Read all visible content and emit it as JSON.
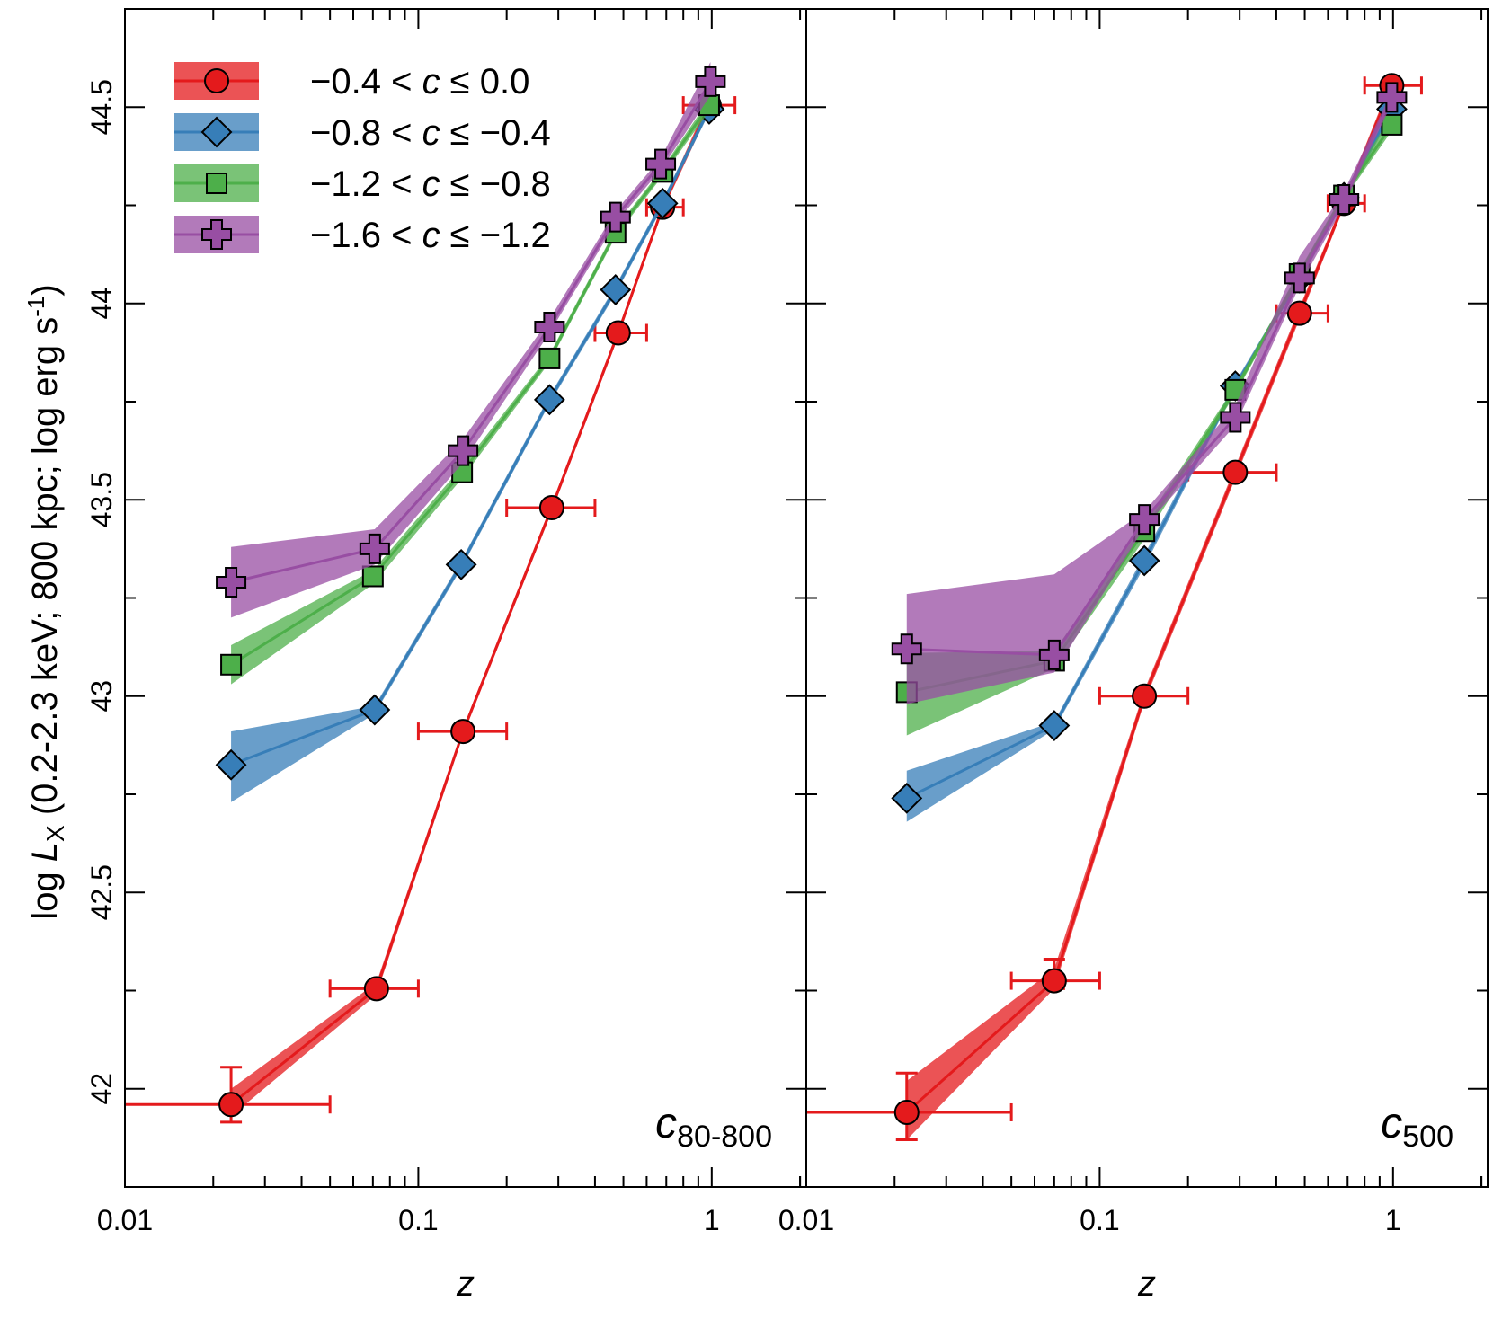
{
  "chart_data": [
    {
      "type": "line",
      "panel_label": "c",
      "panel_label_sub": "80-800",
      "xscale": "log",
      "xlim": [
        0.01,
        2.1
      ],
      "ylim": [
        41.75,
        44.75
      ],
      "xlabel": "z",
      "ylabel_parts": [
        "log ",
        "L",
        "X",
        " (0.2-2.3 keV; 800 kpc; log erg s",
        "-1",
        ")"
      ],
      "xtick_labels": [
        {
          "v": 0.01,
          "t": "0.01"
        },
        {
          "v": 0.1,
          "t": "0.1"
        },
        {
          "v": 1,
          "t": "1"
        }
      ],
      "ytick_labels": [
        {
          "v": 42,
          "t": "42"
        },
        {
          "v": 42.5,
          "t": "42.5"
        },
        {
          "v": 43,
          "t": "43"
        },
        {
          "v": 43.5,
          "t": "43.5"
        },
        {
          "v": 44,
          "t": "44"
        },
        {
          "v": 44.5,
          "t": "44.5"
        }
      ],
      "yticks_minor": [
        42.25,
        42.75,
        43.25,
        43.75,
        44.25
      ],
      "legend": [
        {
          "label": "−0.4 < c ≤   0.0",
          "pre": "−0.4 < ",
          "c": "c",
          "post": " ≤   0.0",
          "color": "#e41a1c",
          "marker": "circle"
        },
        {
          "label": "−0.8 < c ≤ −0.4",
          "pre": "−0.8 < ",
          "c": "c",
          "post": " ≤ −0.4",
          "color": "#377eb8",
          "marker": "diamond"
        },
        {
          "label": "−1.2 < c ≤ −0.8",
          "pre": "−1.2 < ",
          "c": "c",
          "post": " ≤ −0.8",
          "color": "#4daf4a",
          "marker": "square"
        },
        {
          "label": "−1.6 < c ≤ −1.2",
          "pre": "−1.6 < ",
          "c": "c",
          "post": " ≤ −1.2",
          "color": "#984ea3",
          "marker": "plus"
        }
      ],
      "series": [
        {
          "name": "−0.4 < c ≤ 0.0",
          "color": "#e41a1c",
          "marker": "circle",
          "x": [
            0.023,
            0.072,
            0.142,
            0.285,
            0.48,
            0.68,
            0.98
          ],
          "y": [
            41.96,
            42.255,
            42.91,
            43.48,
            43.925,
            44.245,
            44.505
          ],
          "band_lo": [
            41.93,
            42.24,
            42.9,
            43.47,
            43.915,
            44.235,
            44.49
          ],
          "band_hi": [
            42.0,
            42.27,
            42.92,
            43.49,
            43.935,
            44.255,
            44.52
          ],
          "yerr": [
            [
              0.045,
              0.095
            ],
            null,
            null,
            null,
            null,
            null,
            null
          ],
          "xerr": [
            [
              0.01,
              0.05
            ],
            [
              0.05,
              0.1
            ],
            [
              0.1,
              0.2
            ],
            [
              0.2,
              0.4
            ],
            [
              0.4,
              0.6
            ],
            [
              0.6,
              0.8
            ],
            [
              0.8,
              1.2
            ]
          ]
        },
        {
          "name": "−0.8 < c ≤ −0.4",
          "color": "#377eb8",
          "marker": "diamond",
          "x": [
            0.023,
            0.071,
            0.14,
            0.28,
            0.47,
            0.68,
            0.98
          ],
          "y": [
            42.825,
            42.965,
            43.335,
            43.755,
            44.035,
            44.255,
            44.495
          ],
          "band_lo": [
            42.73,
            42.955,
            43.325,
            43.745,
            44.025,
            44.245,
            44.485
          ],
          "band_hi": [
            42.91,
            42.975,
            43.345,
            43.765,
            44.045,
            44.265,
            44.505
          ]
        },
        {
          "name": "−1.2 < c ≤ −0.8",
          "color": "#4daf4a",
          "marker": "square",
          "x": [
            0.023,
            0.07,
            0.141,
            0.28,
            0.47,
            0.68,
            0.98
          ],
          "y": [
            43.08,
            43.305,
            43.57,
            43.86,
            44.18,
            44.335,
            44.505
          ],
          "band_lo": [
            43.03,
            43.285,
            43.555,
            43.85,
            44.17,
            44.325,
            44.49
          ],
          "band_hi": [
            43.13,
            43.32,
            43.585,
            43.87,
            44.19,
            44.345,
            44.52
          ]
        },
        {
          "name": "−1.6 < c ≤ −1.2",
          "color": "#984ea3",
          "marker": "plus",
          "x": [
            0.023,
            0.071,
            0.142,
            0.28,
            0.47,
            0.67,
            0.99
          ],
          "y": [
            43.29,
            43.375,
            43.625,
            43.94,
            44.22,
            44.355,
            44.565
          ],
          "band_lo": [
            43.2,
            43.335,
            43.595,
            43.925,
            44.205,
            44.34,
            44.53
          ],
          "band_hi": [
            43.38,
            43.425,
            43.655,
            43.96,
            44.235,
            44.37,
            44.615
          ]
        }
      ]
    },
    {
      "type": "line",
      "panel_label": "c",
      "panel_label_sub": "500",
      "xscale": "log",
      "xlim": [
        0.01,
        2.1
      ],
      "ylim": [
        41.75,
        44.75
      ],
      "xlabel": "z",
      "xtick_labels": [
        {
          "v": 0.01,
          "t": "0.01"
        },
        {
          "v": 0.1,
          "t": "0.1"
        },
        {
          "v": 1,
          "t": "1"
        }
      ],
      "yticks": [
        42,
        42.25,
        42.5,
        42.75,
        43,
        43.25,
        43.5,
        43.75,
        44,
        44.25,
        44.5
      ],
      "series": [
        {
          "name": "−0.4 < c ≤ 0.0",
          "color": "#e41a1c",
          "marker": "circle",
          "x": [
            0.022,
            0.07,
            0.142,
            0.29,
            0.48,
            0.68,
            0.99
          ],
          "y": [
            41.94,
            42.275,
            43.0,
            43.57,
            43.975,
            44.255,
            44.555
          ],
          "band_lo": [
            41.87,
            42.255,
            42.985,
            43.555,
            43.96,
            44.245,
            44.54
          ],
          "band_hi": [
            42.02,
            42.305,
            43.015,
            43.585,
            43.99,
            44.265,
            44.57
          ],
          "yerr": [
            [
              0.07,
              0.1
            ],
            [
              0.02,
              0.055
            ],
            null,
            null,
            null,
            null,
            null
          ],
          "xerr": [
            [
              0.01,
              0.05
            ],
            [
              0.05,
              0.1
            ],
            [
              0.1,
              0.2
            ],
            [
              0.2,
              0.4
            ],
            [
              0.4,
              0.6
            ],
            [
              0.6,
              0.8
            ],
            [
              0.8,
              1.25
            ]
          ]
        },
        {
          "name": "−0.8 < c ≤ −0.4",
          "color": "#377eb8",
          "marker": "diamond",
          "x": [
            0.022,
            0.07,
            0.142,
            0.29,
            0.48,
            0.68,
            0.99
          ],
          "y": [
            42.74,
            42.925,
            43.345,
            43.79,
            44.065,
            44.27,
            44.495
          ],
          "band_lo": [
            42.68,
            42.915,
            43.33,
            43.78,
            44.055,
            44.26,
            44.48
          ],
          "band_hi": [
            42.81,
            42.935,
            43.36,
            43.8,
            44.075,
            44.28,
            44.51
          ]
        },
        {
          "name": "−1.2 < c ≤ −0.8",
          "color": "#4daf4a",
          "marker": "square",
          "x": [
            0.022,
            0.07,
            0.142,
            0.29,
            0.48,
            0.68,
            0.99
          ],
          "y": [
            43.01,
            43.09,
            43.42,
            43.78,
            44.075,
            44.275,
            44.455
          ],
          "band_lo": [
            42.9,
            43.07,
            43.4,
            43.77,
            44.065,
            44.265,
            44.44
          ],
          "band_hi": [
            43.11,
            43.115,
            43.44,
            43.79,
            44.085,
            44.285,
            44.48
          ]
        },
        {
          "name": "−1.6 < c ≤ −1.2",
          "color": "#984ea3",
          "marker": "plus",
          "x": [
            0.022,
            0.07,
            0.142,
            0.29,
            0.48,
            0.68,
            0.99
          ],
          "y": [
            43.12,
            43.105,
            43.45,
            43.71,
            44.065,
            44.265,
            44.525
          ],
          "band_lo": [
            42.98,
            43.06,
            43.43,
            43.69,
            44.045,
            44.25,
            44.51
          ],
          "band_hi": [
            43.26,
            43.31,
            43.47,
            43.74,
            44.12,
            44.285,
            44.54
          ]
        }
      ]
    }
  ]
}
